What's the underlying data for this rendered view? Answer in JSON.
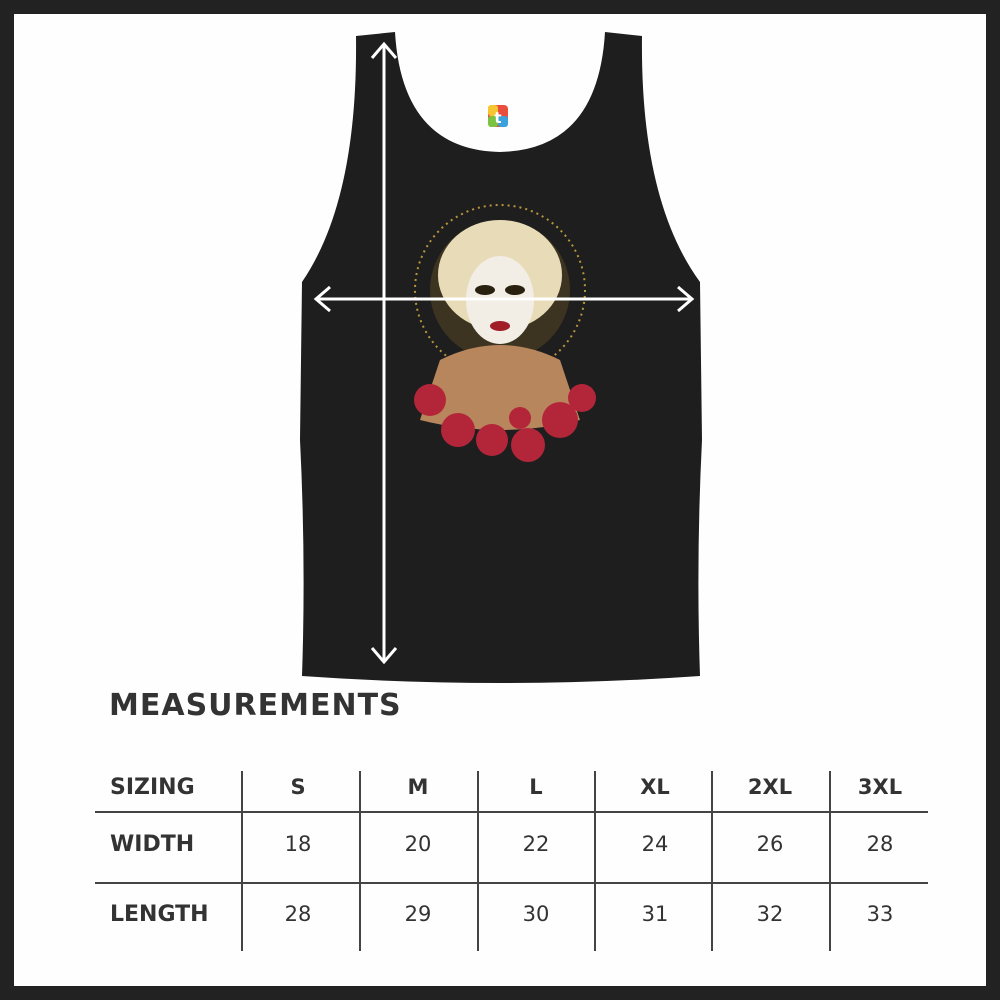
{
  "product": {
    "item": "tank-top",
    "garment_color": "#1e1e1e",
    "arrow_color": "#ffffff",
    "artwork": "sugar-skull woman with golden halo and red roses",
    "logo_icon": "colorful-t-logo"
  },
  "measurements": {
    "title": "MEASUREMENTS",
    "header_label": "SIZING",
    "sizes": [
      "S",
      "M",
      "L",
      "XL",
      "2XL",
      "3XL"
    ],
    "rows": [
      {
        "label": "WIDTH",
        "values": [
          "18",
          "20",
          "22",
          "24",
          "26",
          "28"
        ]
      },
      {
        "label": "LENGTH",
        "values": [
          "28",
          "29",
          "30",
          "31",
          "32",
          "33"
        ]
      }
    ]
  }
}
